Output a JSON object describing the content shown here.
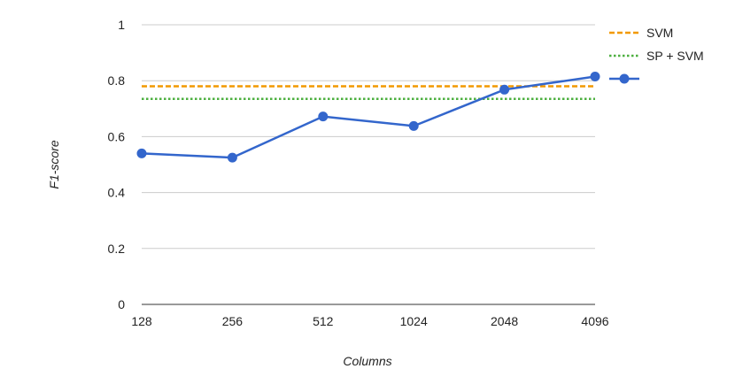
{
  "chart_data": {
    "type": "line",
    "title": "",
    "xlabel": "Columns",
    "ylabel": "F1-score",
    "categories": [
      "128",
      "256",
      "512",
      "1024",
      "2048",
      "4096"
    ],
    "ylim": [
      0,
      1
    ],
    "yticks": [
      "0",
      "0.2",
      "0.4",
      "0.6",
      "0.8",
      "1"
    ],
    "grid": true,
    "legend_position": "right",
    "series": [
      {
        "name": "SVM",
        "style": "dashed",
        "color": "#f29900",
        "values": [
          0.78,
          0.78,
          0.78,
          0.78,
          0.78,
          0.78
        ]
      },
      {
        "name": "SP + SVM",
        "style": "dotted",
        "color": "#4caf3f",
        "values": [
          0.735,
          0.735,
          0.735,
          0.735,
          0.735,
          0.735
        ]
      },
      {
        "name": "",
        "style": "solid-markers",
        "color": "#3366cc",
        "values": [
          0.54,
          0.525,
          0.672,
          0.638,
          0.768,
          0.815
        ]
      }
    ]
  }
}
